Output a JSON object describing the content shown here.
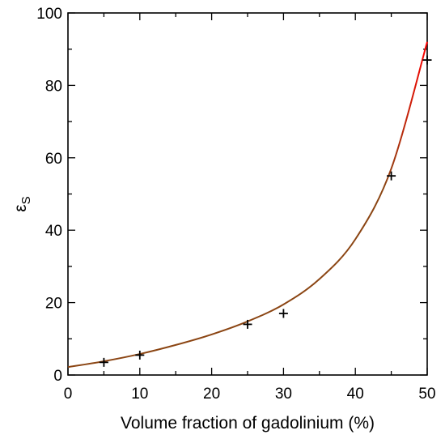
{
  "chart_data": {
    "type": "scatter",
    "title": "",
    "xlabel": "Volume fraction of gadolinium (%)",
    "ylabel": "ε",
    "ylabel_subscript": "S",
    "xlim": [
      0,
      50
    ],
    "ylim": [
      0,
      100
    ],
    "x_ticks": [
      "0",
      "10",
      "20",
      "30",
      "40",
      "50"
    ],
    "y_ticks": [
      "0",
      "20",
      "40",
      "60",
      "80",
      "100"
    ],
    "grid": false,
    "legend": "none",
    "series": [
      {
        "kind": "markers",
        "marker": "plus",
        "color": "#000000",
        "x": [
          5,
          10,
          25,
          30,
          45,
          50
        ],
        "y": [
          3.5,
          5.5,
          14,
          17,
          55,
          87
        ]
      },
      {
        "kind": "fitted-curve",
        "color_low": "#8B4513",
        "color_high": "#FF0000",
        "x": [
          0,
          5,
          10,
          15,
          20,
          25,
          30,
          35,
          40,
          45,
          50
        ],
        "y": [
          2.2,
          3.8,
          5.8,
          8.3,
          11.2,
          14.8,
          19.5,
          26.5,
          37.5,
          57,
          92
        ]
      }
    ]
  }
}
